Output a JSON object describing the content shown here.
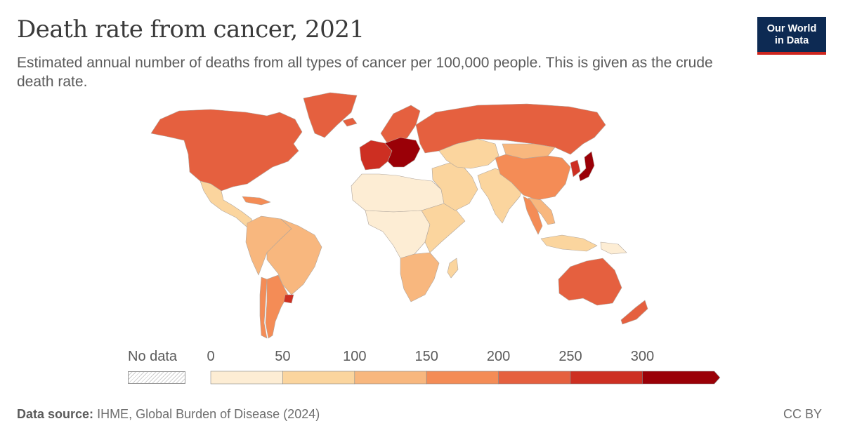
{
  "header": {
    "title": "Death rate from cancer, 2021",
    "subtitle": "Estimated annual number of deaths from all types of cancer per 100,000 people. This is given as the crude death rate."
  },
  "logo": {
    "line1": "Our World",
    "line2": "in Data"
  },
  "legend": {
    "no_data_label": "No data",
    "ticks": [
      "0",
      "50",
      "100",
      "150",
      "200",
      "250",
      "300"
    ],
    "bins": [
      {
        "from": 0,
        "to": 50,
        "color": "#fdedd4"
      },
      {
        "from": 50,
        "to": 100,
        "color": "#fbd59e"
      },
      {
        "from": 100,
        "to": 150,
        "color": "#f8b77e"
      },
      {
        "from": 150,
        "to": 200,
        "color": "#f48c56"
      },
      {
        "from": 200,
        "to": 250,
        "color": "#e5603f"
      },
      {
        "from": 250,
        "to": 300,
        "color": "#cd2f22"
      },
      {
        "from": 300,
        "to": null,
        "color": "#9a0007"
      }
    ]
  },
  "footer": {
    "source_label": "Data source:",
    "source_text": "IHME, Global Burden of Disease (2024)",
    "license": "CC BY"
  },
  "regions": [
    {
      "id": "north-america",
      "bin": 4
    },
    {
      "id": "greenland",
      "bin": 4
    },
    {
      "id": "mexico-central-america",
      "bin": 1
    },
    {
      "id": "caribbean",
      "bin": 3
    },
    {
      "id": "south-america-north",
      "bin": 2
    },
    {
      "id": "brazil",
      "bin": 2
    },
    {
      "id": "argentina",
      "bin": 3
    },
    {
      "id": "uruguay",
      "bin": 5
    },
    {
      "id": "chile",
      "bin": 3
    },
    {
      "id": "western-europe",
      "bin": 5
    },
    {
      "id": "central-europe",
      "bin": 6
    },
    {
      "id": "scandinavia",
      "bin": 4
    },
    {
      "id": "iceland",
      "bin": 4
    },
    {
      "id": "russia",
      "bin": 4
    },
    {
      "id": "north-africa",
      "bin": 0
    },
    {
      "id": "sub-saharan-africa",
      "bin": 0
    },
    {
      "id": "east-africa",
      "bin": 1
    },
    {
      "id": "southern-africa",
      "bin": 2
    },
    {
      "id": "madagascar",
      "bin": 1
    },
    {
      "id": "middle-east",
      "bin": 1
    },
    {
      "id": "central-asia",
      "bin": 1
    },
    {
      "id": "south-asia",
      "bin": 1
    },
    {
      "id": "china",
      "bin": 3
    },
    {
      "id": "mongolia",
      "bin": 2
    },
    {
      "id": "japan",
      "bin": 6
    },
    {
      "id": "korea",
      "bin": 5
    },
    {
      "id": "southeast-asia",
      "bin": 2
    },
    {
      "id": "thailand",
      "bin": 3
    },
    {
      "id": "indonesia",
      "bin": 1
    },
    {
      "id": "papua",
      "bin": 0
    },
    {
      "id": "australia",
      "bin": 4
    },
    {
      "id": "new-zealand",
      "bin": 4
    }
  ]
}
